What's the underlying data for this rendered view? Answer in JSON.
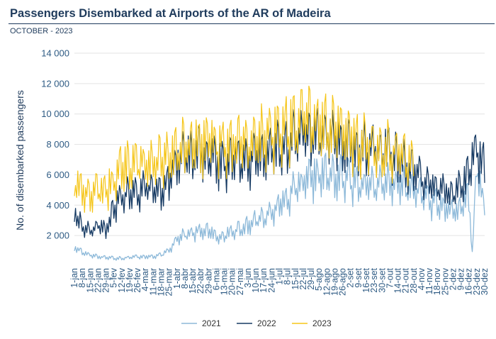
{
  "header": {
    "title": "Passengers Disembarked at Airports of the AR of Madeira",
    "subtitle": "OCTOBER - 2023"
  },
  "chart_data": {
    "type": "line",
    "title": "Passengers Disembarked at Airports of the AR of Madeira",
    "subtitle": "OCTOBER - 2023",
    "xlabel": "",
    "ylabel": "No. of disembarked passengers",
    "ylim": [
      0,
      14000
    ],
    "y_ticks": [
      "2 000",
      "4 000",
      "6 000",
      "8 000",
      "10 000",
      "12 000",
      "14 000"
    ],
    "y_tick_values": [
      2000,
      4000,
      6000,
      8000,
      10000,
      12000,
      14000
    ],
    "x_tick_labels": [
      "1-jan",
      "8-jan",
      "15-jan",
      "22-jan",
      "29-jan",
      "5-fev",
      "12-fev",
      "19-fev",
      "26-fev",
      "4-mar",
      "11-mar",
      "18-mar",
      "25-mar",
      "1-abr",
      "8-abr",
      "15-abr",
      "22-abr",
      "29-abr",
      "6-mai",
      "13-mai",
      "20-mai",
      "27-mai",
      "3-jun",
      "10-jun",
      "17-jun",
      "24-jun",
      "1-jul",
      "8-jul",
      "15-jul",
      "22-jul",
      "29-jul",
      "5-ago",
      "12-ago",
      "19-ago",
      "26-ago",
      "2-set",
      "9-set",
      "16-set",
      "23-set",
      "30-set",
      "7-out",
      "14-out",
      "21-out",
      "28-out",
      "4-nov",
      "11-nov",
      "18-nov",
      "25-nov",
      "2-dez",
      "9-dez",
      "16-dez",
      "23-dez",
      "30-dez"
    ],
    "grid": true,
    "legend_position": "bottom",
    "series": [
      {
        "name": "2021",
        "color": "#8db9d9",
        "days": [
          1,
          8,
          15,
          22,
          29,
          36,
          43,
          50,
          57,
          64,
          71,
          78,
          85,
          92,
          99,
          106,
          113,
          120,
          127,
          134,
          141,
          148,
          155,
          162,
          169,
          176,
          183,
          190,
          197,
          204,
          211,
          218,
          225,
          232,
          239,
          246,
          253,
          260,
          267,
          274,
          281,
          288,
          295,
          302,
          309,
          316,
          323,
          330,
          337,
          344,
          351,
          354,
          358,
          365
        ],
        "values": [
          1200,
          900,
          700,
          600,
          550,
          500,
          500,
          550,
          600,
          600,
          600,
          700,
          1000,
          1800,
          2000,
          2100,
          2200,
          2300,
          1800,
          2000,
          2200,
          2300,
          2600,
          3000,
          3200,
          3300,
          4000,
          4400,
          4900,
          5200,
          5600,
          5800,
          5800,
          5700,
          5600,
          5500,
          5300,
          5300,
          5200,
          5100,
          5300,
          5200,
          5000,
          4900,
          4600,
          4200,
          4000,
          3700,
          3500,
          3600,
          4500,
          800,
          6500,
          3500
        ]
      },
      {
        "name": "2022",
        "color": "#163a63",
        "days": [
          1,
          8,
          15,
          22,
          29,
          36,
          43,
          50,
          57,
          64,
          71,
          78,
          85,
          92,
          99,
          106,
          113,
          120,
          127,
          134,
          141,
          148,
          155,
          162,
          169,
          176,
          183,
          190,
          197,
          204,
          211,
          218,
          225,
          232,
          239,
          246,
          253,
          260,
          267,
          274,
          281,
          288,
          295,
          302,
          309,
          316,
          323,
          330,
          337,
          344,
          351,
          358,
          365
        ],
        "values": [
          3500,
          2500,
          2200,
          2600,
          2300,
          3600,
          4500,
          4500,
          4800,
          5000,
          4900,
          4500,
          5500,
          6700,
          7000,
          7200,
          7400,
          7000,
          6500,
          6700,
          6800,
          7000,
          6900,
          6900,
          7100,
          7300,
          7600,
          7800,
          8200,
          8400,
          8400,
          8300,
          8100,
          7900,
          7800,
          7600,
          7500,
          7400,
          7400,
          7300,
          7200,
          6900,
          6500,
          6000,
          5500,
          5300,
          5000,
          4800,
          4700,
          5000,
          6000,
          7500,
          6500
        ]
      },
      {
        "name": "2023",
        "color": "#f5c518",
        "days": [
          1,
          8,
          15,
          22,
          29,
          36,
          43,
          50,
          57,
          64,
          71,
          78,
          85,
          92,
          99,
          106,
          113,
          120,
          127,
          134,
          141,
          148,
          155,
          162,
          169,
          176,
          183,
          190,
          197,
          204,
          211,
          218,
          225,
          232,
          239,
          246,
          253,
          260,
          267,
          274,
          281,
          288,
          295,
          302
        ],
        "values": [
          5500,
          4800,
          4600,
          4800,
          4900,
          5500,
          6300,
          6400,
          6500,
          6600,
          6700,
          6700,
          6800,
          7200,
          7700,
          7800,
          7800,
          7700,
          7800,
          7900,
          7900,
          7900,
          8000,
          8100,
          8200,
          8400,
          8600,
          8800,
          9000,
          9200,
          9200,
          9100,
          8900,
          8600,
          8400,
          8200,
          8000,
          7800,
          7700,
          7500,
          7400,
          7300,
          6800,
          6400
        ]
      }
    ]
  }
}
